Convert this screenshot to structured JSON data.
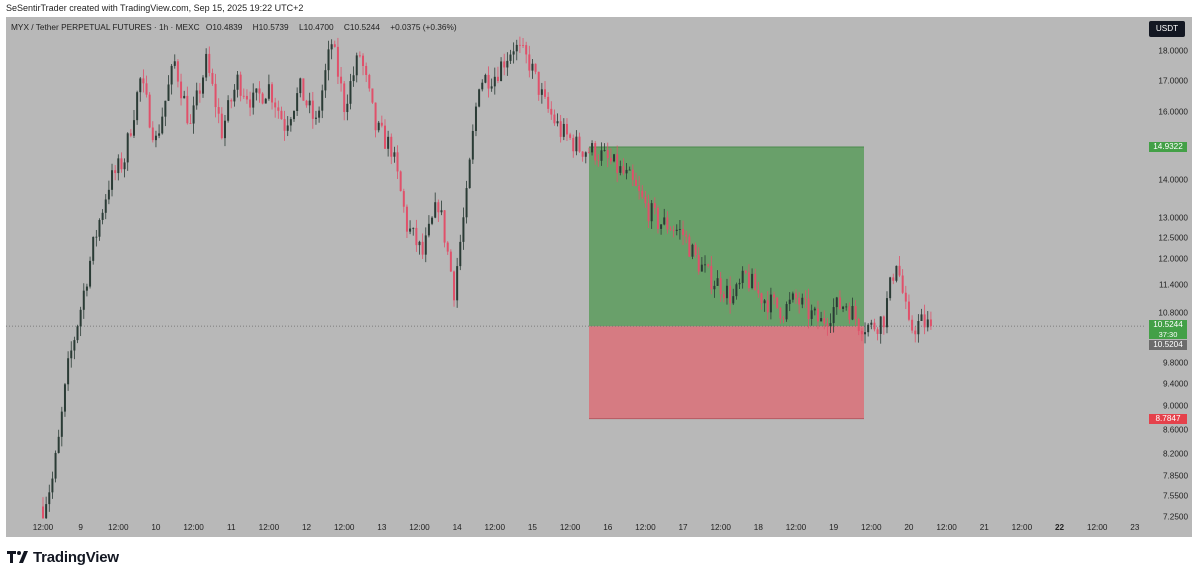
{
  "watermark": "SeSentirTrader created with TradingView.com, Sep 15, 2025 19:22 UTC+2",
  "brand": "TradingView",
  "legend": {
    "symbol": "MYX / Tether PERPETUAL FUTURES · 1h · MEXC",
    "open_label": "O",
    "open": "10.4839",
    "high_label": "H",
    "high": "10.5739",
    "low_label": "L",
    "low": "10.4700",
    "close_label": "C",
    "close": "10.5244",
    "change": "+0.0375 (+0.36%)"
  },
  "currency_button": "USDT",
  "price_axis": {
    "ticks": [
      "18.0000",
      "17.0000",
      "16.0000",
      "14.0000",
      "13.0000",
      "12.5000",
      "12.0000",
      "11.4000",
      "10.8000",
      "9.8000",
      "9.4000",
      "9.0000",
      "8.6000",
      "8.2000",
      "7.8500",
      "7.5500",
      "7.2500"
    ],
    "take_profit_label": "14.9322",
    "current_price_label": "10.5244",
    "countdown": "37:30",
    "entry_label": "10.5204",
    "stop_loss_label": "8.7847"
  },
  "time_axis": {
    "labels": [
      "12:00",
      "9",
      "12:00",
      "10",
      "12:00",
      "11",
      "12:00",
      "12",
      "12:00",
      "13",
      "12:00",
      "14",
      "12:00",
      "15",
      "12:00",
      "16",
      "12:00",
      "17",
      "12:00",
      "18",
      "12:00",
      "19",
      "12:00",
      "20",
      "12:00",
      "21",
      "12:00",
      "22",
      "12:00",
      "23"
    ],
    "bold": [
      "22"
    ]
  },
  "colors": {
    "background": "#b8b8b8",
    "up_candle": "#2a3b35",
    "down_candle": "#e0506a",
    "profit_zone": "#69a06a",
    "loss_zone": "#d67b82",
    "take_profit_badge": "#43a047",
    "stop_loss_badge": "#e5414b",
    "entry_badge": "#6b6b6b"
  },
  "chart_data": {
    "type": "candlestick",
    "interval": "1h",
    "x_range": [
      "Sep 8 12:00",
      "Sep 23 12:00"
    ],
    "y_scale": "log",
    "y_range": [
      7.25,
      18.8
    ],
    "position": {
      "type": "long",
      "entry": 10.5204,
      "take_profit": 14.9322,
      "stop_loss": 8.7847
    },
    "last_close": 10.5244,
    "path_hours": [
      0,
      3,
      5,
      8,
      12,
      16,
      21,
      26,
      31,
      36,
      42,
      47,
      52,
      57,
      62,
      67,
      72,
      77,
      82,
      87,
      92,
      96,
      101,
      106,
      111,
      116,
      121,
      126,
      131,
      135,
      139,
      144,
      150,
      155,
      160,
      165,
      171,
      176,
      182,
      187,
      192,
      196,
      200,
      204,
      208,
      212,
      216,
      220,
      224,
      228,
      232,
      236,
      240,
      244,
      248,
      252,
      256,
      260,
      264,
      268,
      272,
      276,
      280,
      283
    ],
    "path_closes": [
      7.4,
      7.8,
      8.4,
      9.7,
      10.9,
      12.3,
      13.9,
      14.6,
      17.0,
      15.1,
      17.6,
      15.5,
      17.6,
      15.4,
      17.0,
      16.3,
      16.8,
      15.6,
      16.7,
      15.6,
      18.3,
      16.2,
      17.9,
      15.5,
      14.9,
      12.8,
      12.1,
      13.4,
      11.3,
      13.5,
      17.0,
      17.2,
      18.2,
      17.6,
      16.2,
      15.4,
      14.9,
      14.8,
      14.4,
      14.0,
      13.3,
      12.9,
      12.8,
      12.6,
      12.0,
      11.6,
      11.4,
      11.1,
      11.6,
      11.2,
      11.0,
      10.85,
      11.1,
      10.8,
      10.6,
      10.9,
      11.0,
      10.6,
      10.5,
      10.7,
      12.0,
      10.45,
      10.6,
      10.5244
    ]
  }
}
